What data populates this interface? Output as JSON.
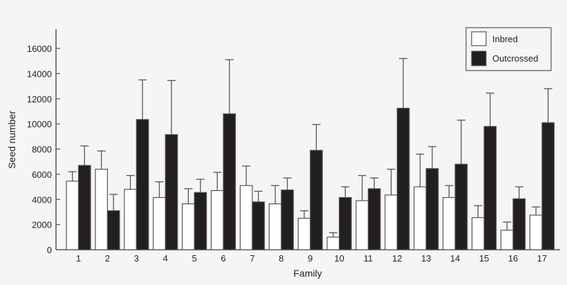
{
  "chart_data": {
    "type": "bar",
    "title": "",
    "xlabel": "Family",
    "ylabel": "Seed number",
    "ylim": [
      0,
      17500
    ],
    "yticks": [
      0,
      2000,
      4000,
      6000,
      8000,
      10000,
      12000,
      14000,
      16000
    ],
    "grid": false,
    "legend_position": "top-right",
    "categories": [
      "1",
      "2",
      "3",
      "4",
      "5",
      "6",
      "7",
      "8",
      "9",
      "10",
      "11",
      "12",
      "13",
      "14",
      "15",
      "16",
      "17"
    ],
    "series": [
      {
        "name": "Inbred",
        "color": "#ffffff",
        "values": [
          5450,
          6400,
          4800,
          4150,
          3650,
          4700,
          5100,
          3650,
          2500,
          1000,
          3900,
          4350,
          5000,
          4150,
          2550,
          1550,
          2750
        ],
        "error_upper": [
          6200,
          7850,
          5900,
          5400,
          4850,
          6150,
          6650,
          5100,
          3100,
          1350,
          5900,
          6400,
          7600,
          5100,
          3500,
          2200,
          3400
        ]
      },
      {
        "name": "Outcrossed",
        "color": "#231f20",
        "values": [
          6700,
          3100,
          10350,
          9150,
          4550,
          10800,
          3800,
          4750,
          7900,
          4150,
          4850,
          11250,
          6450,
          6800,
          9800,
          4050,
          10100
        ],
        "error_upper": [
          8250,
          4400,
          13500,
          13450,
          5600,
          15100,
          4650,
          5700,
          9950,
          5000,
          5700,
          15200,
          8200,
          10300,
          12450,
          5000,
          12800
        ]
      }
    ]
  },
  "colors": {
    "background": "#f5f5f5",
    "axis": "#555555",
    "bar_outline": "#555555"
  }
}
